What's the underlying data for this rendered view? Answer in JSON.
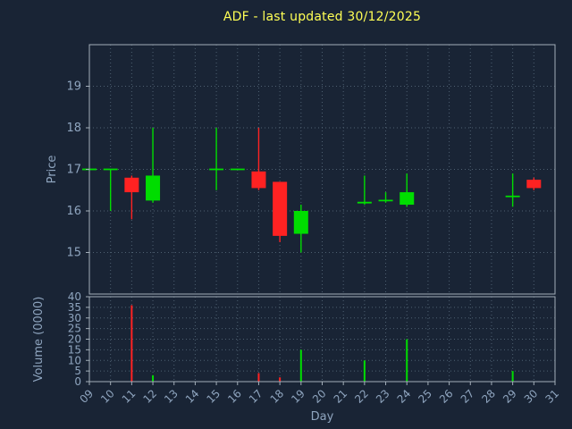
{
  "title": "ADF - last updated 30/12/2025",
  "colors": {
    "background": "#192435",
    "title": "#ffff55",
    "tick_text": "#8fa5bf",
    "grid": "#4e6071",
    "border": "#a3aeb9",
    "up": "#00dd00",
    "down": "#ff2222"
  },
  "chart_data": [
    {
      "type": "candlestick",
      "panel": "price",
      "title": "ADF - last updated 30/12/2025",
      "xlabel": "Day",
      "ylabel": "Price",
      "xlim": [
        9,
        31
      ],
      "ylim": [
        14,
        20
      ],
      "yticks": [
        15,
        16,
        17,
        18,
        19
      ],
      "xticks": [
        "09",
        "10",
        "11",
        "12",
        "13",
        "14",
        "15",
        "16",
        "17",
        "18",
        "19",
        "20",
        "21",
        "22",
        "23",
        "24",
        "25",
        "26",
        "27",
        "28",
        "29",
        "30",
        "31"
      ],
      "grid": true,
      "candles": [
        {
          "day": 9,
          "open": 17.0,
          "high": 17.0,
          "low": 17.0,
          "close": 17.0
        },
        {
          "day": 10,
          "open": 17.0,
          "high": 17.0,
          "low": 16.0,
          "close": 17.0
        },
        {
          "day": 11,
          "open": 16.8,
          "high": 16.85,
          "low": 15.8,
          "close": 16.45
        },
        {
          "day": 12,
          "open": 16.25,
          "high": 18.0,
          "low": 16.2,
          "close": 16.85
        },
        {
          "day": 15,
          "open": 17.0,
          "high": 18.0,
          "low": 16.5,
          "close": 17.0
        },
        {
          "day": 16,
          "open": 17.0,
          "high": 17.0,
          "low": 17.0,
          "close": 17.0
        },
        {
          "day": 17,
          "open": 16.95,
          "high": 18.0,
          "low": 16.5,
          "close": 16.55
        },
        {
          "day": 18,
          "open": 16.7,
          "high": 16.7,
          "low": 15.25,
          "close": 15.4
        },
        {
          "day": 19,
          "open": 15.45,
          "high": 16.15,
          "low": 15.0,
          "close": 16.0
        },
        {
          "day": 22,
          "open": 16.2,
          "high": 16.85,
          "low": 16.15,
          "close": 16.2
        },
        {
          "day": 23,
          "open": 16.25,
          "high": 16.45,
          "low": 16.2,
          "close": 16.25
        },
        {
          "day": 24,
          "open": 16.15,
          "high": 16.9,
          "low": 16.1,
          "close": 16.45
        },
        {
          "day": 29,
          "open": 16.35,
          "high": 16.9,
          "low": 16.1,
          "close": 16.35
        },
        {
          "day": 30,
          "open": 16.75,
          "high": 16.8,
          "low": 16.5,
          "close": 16.55
        }
      ]
    },
    {
      "type": "bar",
      "panel": "volume",
      "ylabel": "Volume (0000)",
      "ylim": [
        0,
        40
      ],
      "yticks": [
        0,
        5,
        10,
        15,
        20,
        25,
        30,
        35,
        40
      ],
      "grid": true,
      "bars": [
        {
          "day": 11,
          "value": 36,
          "dir": "down"
        },
        {
          "day": 12,
          "value": 3,
          "dir": "up"
        },
        {
          "day": 17,
          "value": 4,
          "dir": "down"
        },
        {
          "day": 18,
          "value": 2,
          "dir": "down"
        },
        {
          "day": 19,
          "value": 15,
          "dir": "up"
        },
        {
          "day": 22,
          "value": 10,
          "dir": "up"
        },
        {
          "day": 24,
          "value": 20,
          "dir": "up"
        },
        {
          "day": 29,
          "value": 5,
          "dir": "up"
        }
      ]
    }
  ]
}
